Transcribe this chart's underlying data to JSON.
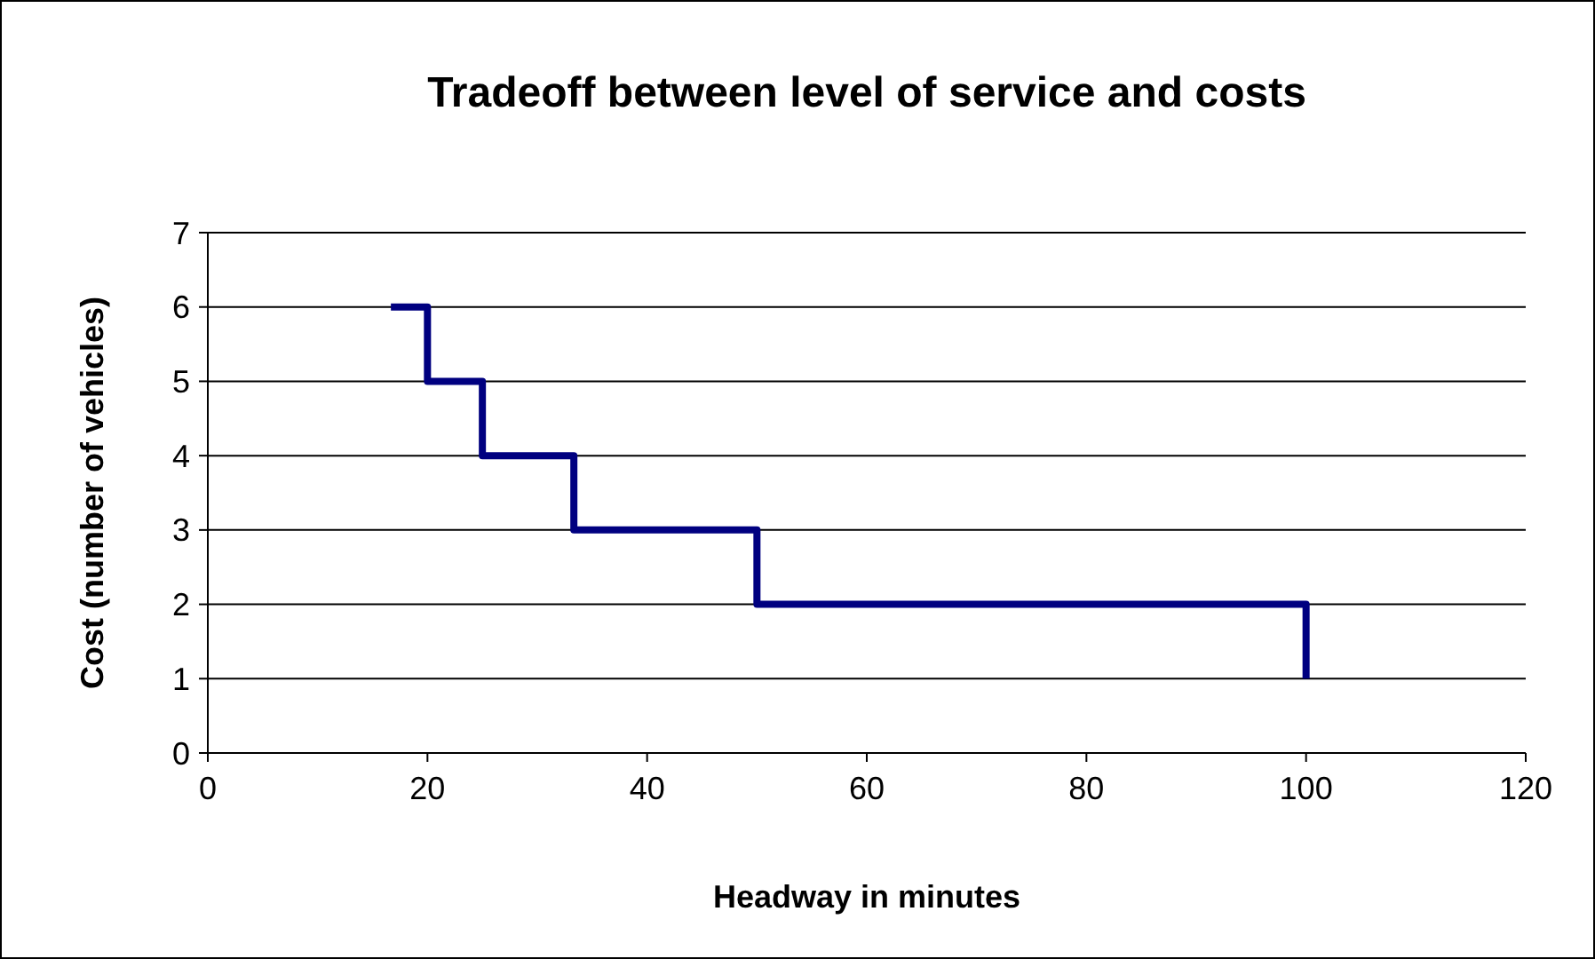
{
  "chart_data": {
    "type": "step",
    "title": "Tradeoff between level of service and costs",
    "xlabel": "Headway in minutes",
    "ylabel": "Cost (number of vehicles)",
    "x": [
      16.67,
      20,
      25,
      33.33,
      50,
      100
    ],
    "series": [
      {
        "color": "#000080",
        "values": [
          6,
          5,
          4,
          3,
          2,
          1
        ]
      }
    ],
    "xlim": [
      0,
      120
    ],
    "xticks": [
      0,
      20,
      40,
      60,
      80,
      100,
      120
    ],
    "ylim": [
      0,
      7
    ],
    "yticks": [
      0,
      1,
      2,
      3,
      4,
      5,
      6,
      7
    ],
    "grid": "y",
    "marker": "none",
    "line_style": "solid"
  }
}
